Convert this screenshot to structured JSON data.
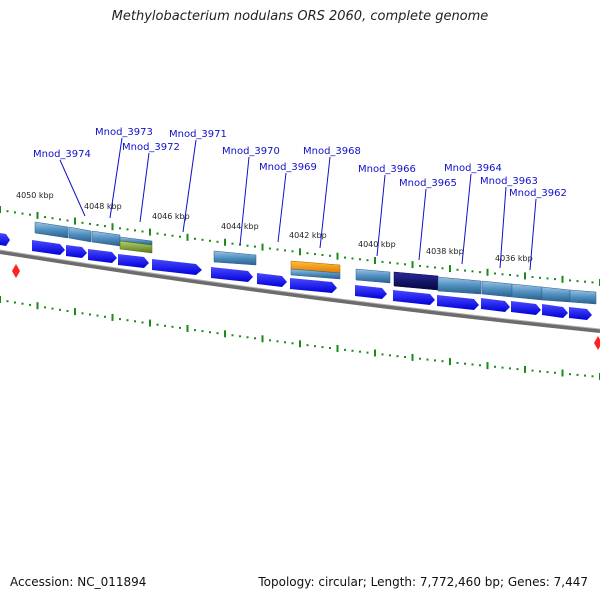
{
  "title": "Methylobacterium nodulans ORS 2060, complete genome",
  "footer": {
    "accession": "Accession: NC_011894",
    "topology": "Topology: circular; Length: 7,772,460 bp; Genes: 7,447"
  },
  "scale_labels": [
    "4050 kbp",
    "4048 kbp",
    "4046 kbp",
    "4044 kbp",
    "4042 kbp",
    "4040 kbp",
    "4038 kbp",
    "4036 kbp"
  ],
  "gene_labels": [
    "Mnod_3974",
    "Mnod_3973",
    "Mnod_3972",
    "Mnod_3971",
    "Mnod_3970",
    "Mnod_3969",
    "Mnod_3968",
    "Mnod_3966",
    "Mnod_3965",
    "Mnod_3964",
    "Mnod_3963",
    "Mnod_3962"
  ],
  "colors": {
    "cds_arrow": "#1a1aff",
    "feature_default": "#4f8fc0",
    "feature_green": "#7a9a2a",
    "feature_orange": "#ff9900",
    "feature_navy": "#0a0a6e",
    "backbone": "#808080",
    "tick": "#1a8a1a",
    "marker": "#ff2020"
  }
}
